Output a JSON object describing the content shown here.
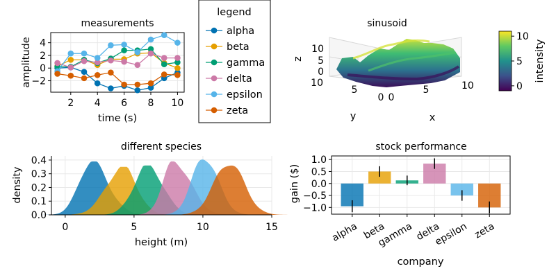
{
  "colors": {
    "alpha": "#0072b2",
    "beta": "#e69f00",
    "gamma": "#009e73",
    "delta": "#cc79a7",
    "epsilon": "#56b4e9",
    "zeta": "#d55e00"
  },
  "chart_data": [
    {
      "type": "line",
      "title": "measurements",
      "xlabel": "time (s)",
      "ylabel": "amplitude",
      "x": [
        1,
        2,
        3,
        4,
        5,
        6,
        7,
        8,
        9,
        10
      ],
      "xticks": [
        2,
        4,
        6,
        8,
        10
      ],
      "yticks": [
        -2,
        0,
        2,
        4
      ],
      "xlim": [
        0.5,
        10.5
      ],
      "ylim": [
        -3.8,
        5.6
      ],
      "grid": true,
      "legend_title": "legend",
      "legend_position": "right",
      "series": [
        {
          "name": "alpha",
          "values": [
            0.0,
            0.1,
            -0.6,
            -2.4,
            -3.2,
            -2.8,
            -3.5,
            -3.1,
            -1.6,
            -0.7
          ]
        },
        {
          "name": "beta",
          "values": [
            0.3,
            1.3,
            1.3,
            0.5,
            1.4,
            1.4,
            2.3,
            2.4,
            0.8,
            0.0
          ]
        },
        {
          "name": "gamma",
          "values": [
            0.2,
            0.2,
            1.3,
            0.8,
            1.5,
            2.8,
            2.8,
            3.0,
            0.6,
            0.9
          ]
        },
        {
          "name": "delta",
          "values": [
            0.8,
            0.1,
            1.1,
            0.9,
            1.2,
            1.0,
            0.5,
            2.3,
            1.6,
            1.6
          ]
        },
        {
          "name": "epsilon",
          "values": [
            -0.5,
            2.3,
            2.3,
            1.6,
            3.6,
            3.7,
            2.5,
            4.5,
            5.2,
            4.0
          ]
        },
        {
          "name": "zeta",
          "values": [
            -0.9,
            -1.2,
            -1.6,
            -1.1,
            -0.7,
            -2.6,
            -2.6,
            -2.4,
            -1.0,
            -1.1
          ]
        }
      ]
    },
    {
      "type": "surface",
      "title": "sinusoid",
      "xlabel": "x",
      "ylabel": "y",
      "zlabel": "z",
      "xticks": [
        0,
        5,
        10
      ],
      "yticks": [
        0,
        5,
        10
      ],
      "zticks": [
        0,
        5,
        10
      ],
      "xlim": [
        0,
        10
      ],
      "ylim": [
        0,
        10
      ],
      "zlim": [
        0,
        11
      ],
      "colorbar_label": "intensity",
      "colorbar_ticks": [
        0,
        5,
        10
      ],
      "colorbar_range": [
        -1,
        11
      ]
    },
    {
      "type": "area",
      "title": "different species",
      "xlabel": "height (m)",
      "ylabel": "density",
      "xticks": [
        0,
        5,
        10,
        15
      ],
      "yticks": [
        0.0,
        0.1,
        0.2,
        0.3,
        0.4
      ],
      "xlim": [
        -1,
        15
      ],
      "ylim": [
        0,
        0.43
      ],
      "series": [
        {
          "name": "alpha",
          "peak_x": 1.9,
          "peak_density": 0.39
        },
        {
          "name": "beta",
          "peak_x": 4.2,
          "peak_density": 0.35
        },
        {
          "name": "gamma",
          "peak_x": 6.0,
          "peak_density": 0.36
        },
        {
          "name": "delta",
          "peak_x": 7.9,
          "peak_density": 0.39
        },
        {
          "name": "epsilon",
          "peak_x": 10.1,
          "peak_density": 0.42
        },
        {
          "name": "zeta",
          "peak_x": 11.9,
          "peak_density": 0.38
        }
      ]
    },
    {
      "type": "bar",
      "title": "stock performance",
      "xlabel": "company",
      "ylabel": "gain ($)",
      "categories": [
        "alpha",
        "beta",
        "gamma",
        "delta",
        "epsilon",
        "zeta"
      ],
      "values": [
        -0.95,
        0.5,
        0.13,
        0.83,
        -0.5,
        -1.0
      ],
      "errors": [
        0.25,
        0.22,
        0.2,
        0.22,
        0.22,
        0.25
      ],
      "yticks": [
        -1.0,
        -0.5,
        0.0,
        0.5,
        1.0
      ],
      "ylim": [
        -1.28,
        1.15
      ],
      "grid": true
    }
  ]
}
